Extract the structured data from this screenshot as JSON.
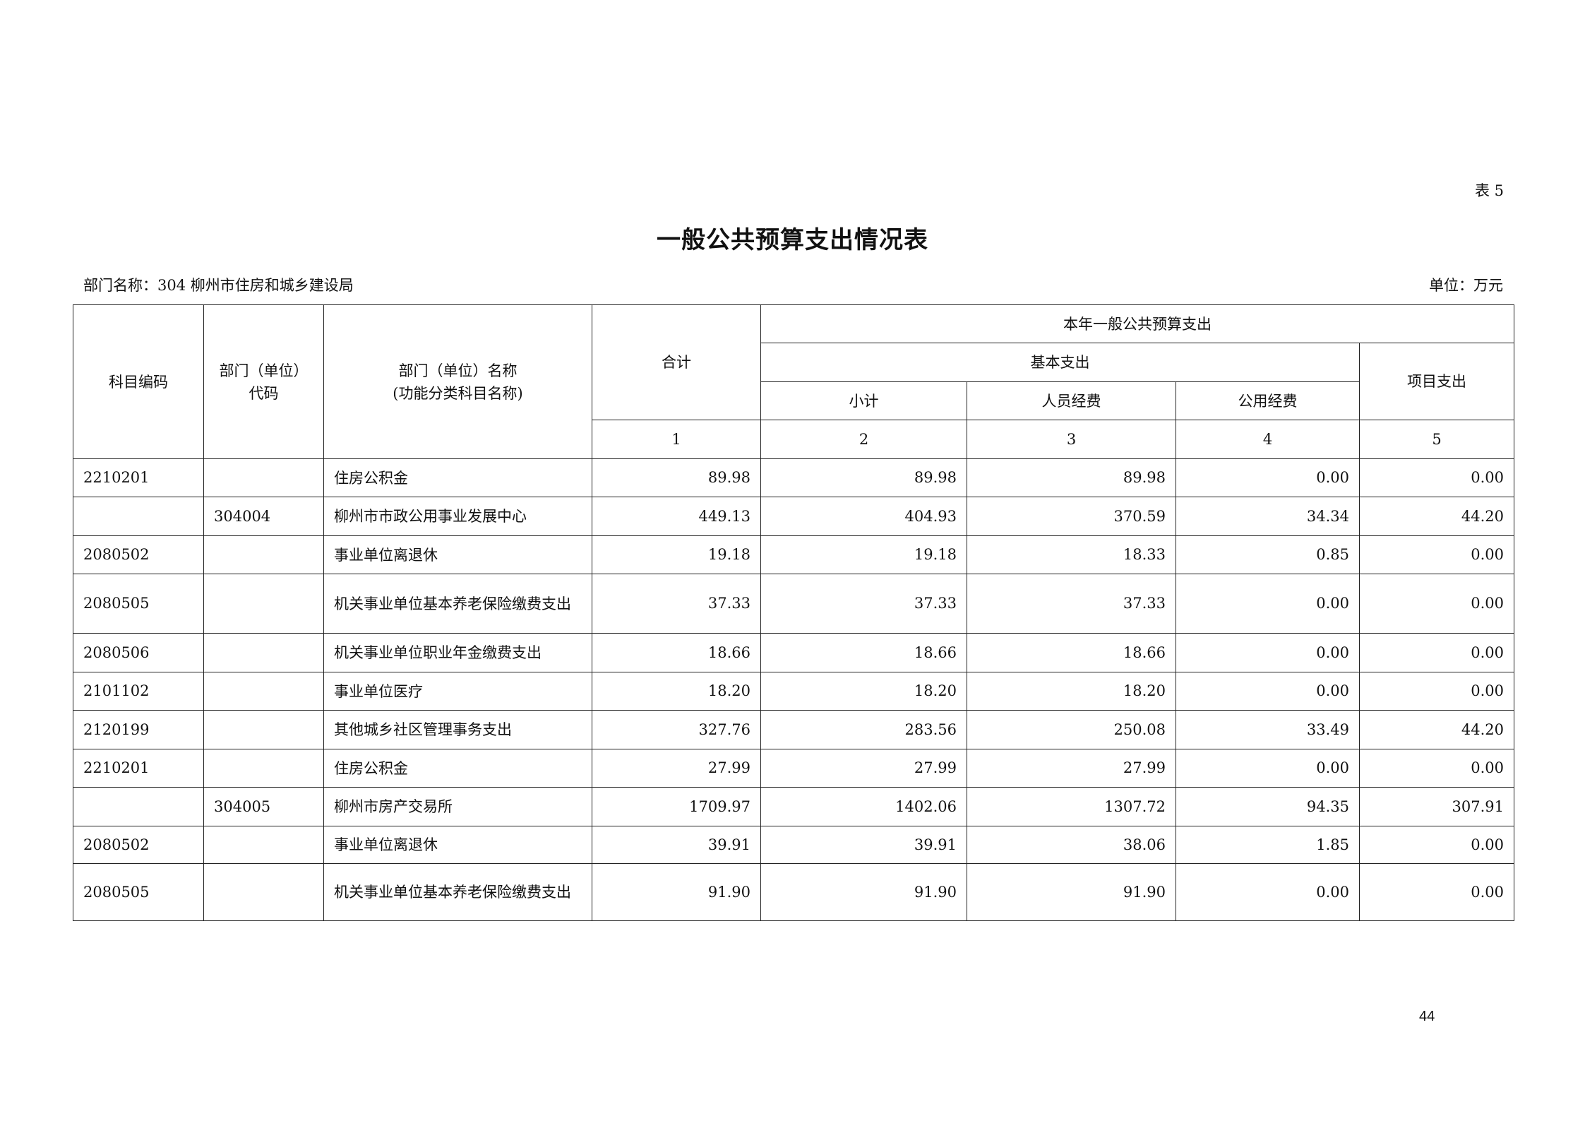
{
  "table_no": "表 5",
  "title": "一般公共预算支出情况表",
  "dept_label": "部门名称：",
  "dept_name": "304 柳州市住房和城乡建设局",
  "unit": "单位：万元",
  "headers": {
    "subject_code": "科目编码",
    "dept_code_1": "部门（单位）",
    "dept_code_2": "代码",
    "dept_name_1": "部门（单位）名称",
    "dept_name_2": "(功能分类科目名称)",
    "total": "合计",
    "this_year": "本年一般公共预算支出",
    "basic": "基本支出",
    "project": "项目支出",
    "subtotal": "小计",
    "personnel": "人员经费",
    "public": "公用经费",
    "n1": "1",
    "n2": "2",
    "n3": "3",
    "n4": "4",
    "n5": "5"
  },
  "rows": [
    {
      "code": "2210201",
      "dept_code": "",
      "name": "住房公积金",
      "total": "89.98",
      "subtotal": "89.98",
      "personnel": "89.98",
      "public": "0.00",
      "project": "0.00"
    },
    {
      "code": "",
      "dept_code": "304004",
      "name": "柳州市市政公用事业发展中心",
      "total": "449.13",
      "subtotal": "404.93",
      "personnel": "370.59",
      "public": "34.34",
      "project": "44.20"
    },
    {
      "code": "2080502",
      "dept_code": "",
      "name": "事业单位离退休",
      "total": "19.18",
      "subtotal": "19.18",
      "personnel": "18.33",
      "public": "0.85",
      "project": "0.00"
    },
    {
      "code": "2080505",
      "dept_code": "",
      "name": "机关事业单位基本养老保险缴费支出",
      "total": "37.33",
      "subtotal": "37.33",
      "personnel": "37.33",
      "public": "0.00",
      "project": "0.00"
    },
    {
      "code": "2080506",
      "dept_code": "",
      "name": "机关事业单位职业年金缴费支出",
      "total": "18.66",
      "subtotal": "18.66",
      "personnel": "18.66",
      "public": "0.00",
      "project": "0.00"
    },
    {
      "code": "2101102",
      "dept_code": "",
      "name": "事业单位医疗",
      "total": "18.20",
      "subtotal": "18.20",
      "personnel": "18.20",
      "public": "0.00",
      "project": "0.00"
    },
    {
      "code": "2120199",
      "dept_code": "",
      "name": "其他城乡社区管理事务支出",
      "total": "327.76",
      "subtotal": "283.56",
      "personnel": "250.08",
      "public": "33.49",
      "project": "44.20"
    },
    {
      "code": "2210201",
      "dept_code": "",
      "name": "住房公积金",
      "total": "27.99",
      "subtotal": "27.99",
      "personnel": "27.99",
      "public": "0.00",
      "project": "0.00"
    },
    {
      "code": "",
      "dept_code": "304005",
      "name": "柳州市房产交易所",
      "total": "1709.97",
      "subtotal": "1402.06",
      "personnel": "1307.72",
      "public": "94.35",
      "project": "307.91"
    },
    {
      "code": "2080502",
      "dept_code": "",
      "name": "事业单位离退休",
      "total": "39.91",
      "subtotal": "39.91",
      "personnel": "38.06",
      "public": "1.85",
      "project": "0.00"
    },
    {
      "code": "2080505",
      "dept_code": "",
      "name": "机关事业单位基本养老保险缴费支出",
      "total": "91.90",
      "subtotal": "91.90",
      "personnel": "91.90",
      "public": "0.00",
      "project": "0.00"
    }
  ],
  "page_number": "44"
}
